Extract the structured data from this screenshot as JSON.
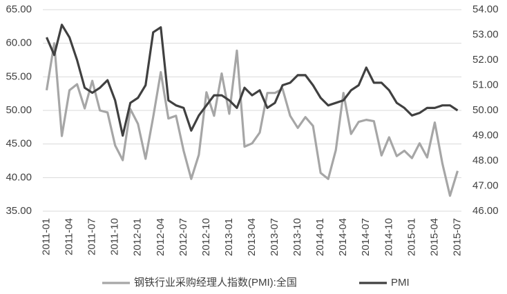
{
  "chart_data": {
    "type": "line",
    "categories": [
      "2011-01",
      null,
      null,
      "2011-04",
      null,
      null,
      "2011-07",
      null,
      null,
      "2011-10",
      null,
      null,
      "2012-01",
      null,
      null,
      "2012-04",
      null,
      null,
      "2012-07",
      null,
      null,
      "2012-10",
      null,
      null,
      "2013-01",
      null,
      null,
      "2013-04",
      null,
      null,
      "2013-07",
      null,
      null,
      "2013-10",
      null,
      null,
      "2014-01",
      null,
      null,
      "2014-04",
      null,
      null,
      "2014-07",
      null,
      null,
      "2014-10",
      null,
      null,
      "2015-01",
      null,
      null,
      "2015-04",
      null,
      null,
      "2015-07"
    ],
    "series": [
      {
        "name": "钢铁行业采购经理人指数(PMI):全国",
        "color": "#a6a6a6",
        "axis": "y",
        "values": [
          53.0,
          60.0,
          46.2,
          53.0,
          53.9,
          50.3,
          54.4,
          50.0,
          49.7,
          44.8,
          42.6,
          50.2,
          48.0,
          42.8,
          49.0,
          55.7,
          48.8,
          49.2,
          44.0,
          39.8,
          43.4,
          52.7,
          49.2,
          55.5,
          49.5,
          58.9,
          44.6,
          45.1,
          46.7,
          52.6,
          52.6,
          53.2,
          49.2,
          47.4,
          49.0,
          47.7,
          40.7,
          39.8,
          44.1,
          52.6,
          46.5,
          48.3,
          48.6,
          48.4,
          43.3,
          46.0,
          43.2,
          44.0,
          42.9,
          45.1,
          43.0,
          48.2,
          42.1,
          37.3,
          41.0
        ]
      },
      {
        "name": "PMI",
        "color": "#404040",
        "axis": "y2",
        "values": [
          52.9,
          52.2,
          53.4,
          52.9,
          52.0,
          50.9,
          50.7,
          50.9,
          51.2,
          50.4,
          49.0,
          50.3,
          50.5,
          51.0,
          53.1,
          53.3,
          50.4,
          50.2,
          50.1,
          49.2,
          49.8,
          50.2,
          50.6,
          50.6,
          50.4,
          50.1,
          50.9,
          50.6,
          50.8,
          50.1,
          50.3,
          51.0,
          51.1,
          51.4,
          51.4,
          51.0,
          50.5,
          50.2,
          50.3,
          50.4,
          50.8,
          51.0,
          51.7,
          51.1,
          51.1,
          50.8,
          50.3,
          50.1,
          49.8,
          49.9,
          50.1,
          50.1,
          50.2,
          50.2,
          50.0
        ]
      }
    ],
    "ylim": [
      35,
      65
    ],
    "yticks": [
      {
        "value": 35,
        "label": "35.00"
      },
      {
        "value": 40,
        "label": "40.00"
      },
      {
        "value": 45,
        "label": "45.00"
      },
      {
        "value": 50,
        "label": "50.00"
      },
      {
        "value": 55,
        "label": "55.00"
      },
      {
        "value": 60,
        "label": "60.00"
      },
      {
        "value": 65,
        "label": "65.00"
      }
    ],
    "y2lim": [
      46,
      54
    ],
    "y2ticks": [
      {
        "value": 46,
        "label": "46.00"
      },
      {
        "value": 47,
        "label": "47.00"
      },
      {
        "value": 48,
        "label": "48.00"
      },
      {
        "value": 49,
        "label": "49.00"
      },
      {
        "value": 50,
        "label": "50.00"
      },
      {
        "value": 51,
        "label": "51.00"
      },
      {
        "value": 52,
        "label": "52.00"
      },
      {
        "value": 53,
        "label": "53.00"
      },
      {
        "value": 54,
        "label": "54.00"
      }
    ],
    "grid": true,
    "legend": "bottom"
  }
}
